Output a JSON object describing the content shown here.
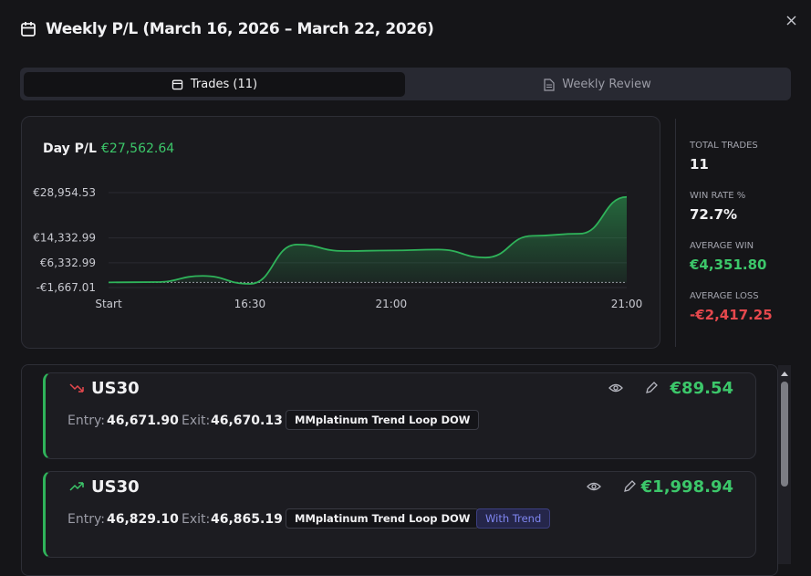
{
  "header": {
    "title": "Weekly P/L (March 16, 2026 – March 22, 2026)"
  },
  "tabs": [
    {
      "label": "Trades (11)"
    },
    {
      "label": "Weekly Review"
    }
  ],
  "summary": {
    "label": "Day P/L",
    "value": "€27,562.64"
  },
  "chart_data": {
    "type": "area",
    "categories": [
      "Start",
      null,
      null,
      "16:30",
      null,
      null,
      "21:00",
      null,
      null,
      null,
      null,
      "21:00"
    ],
    "values": [
      0,
      89.54,
      2088.48,
      -500,
      12200,
      10100,
      10300,
      10600,
      8000,
      15000,
      15700,
      27562.64
    ],
    "color": "#2fb35a",
    "ylim": [
      -1667.01,
      28954.53
    ],
    "yticks": [
      {
        "value": -1667.01,
        "label": "-€1,667.01"
      },
      {
        "value": 6332.99,
        "label": "€6,332.99"
      },
      {
        "value": 14332.99,
        "label": "€14,332.99"
      },
      {
        "value": 28954.53,
        "label": "€28,954.53"
      }
    ],
    "grid": true
  },
  "stats": [
    {
      "label": "TOTAL TRADES",
      "value": "11"
    },
    {
      "label": "WIN RATE %",
      "value": "72.7%"
    },
    {
      "label": "AVERAGE WIN",
      "value": "€4,351.80"
    },
    {
      "label": "AVERAGE LOSS",
      "value": "-€2,417.25"
    }
  ],
  "trades": [
    {
      "symbol": "US30",
      "entry_label": "Entry:",
      "entry": "46,671.90",
      "exit_label": "Exit:",
      "exit": "46,670.13",
      "strategy": "MMplatinum Trend Loop DOW",
      "pnl": "€89.54"
    },
    {
      "symbol": "US30",
      "entry_label": "Entry:",
      "entry": "46,829.10",
      "exit_label": "Exit:",
      "exit": "46,865.19",
      "strategy": "MMplatinum Trend Loop DOW",
      "tag": "With Trend",
      "pnl": "€1,998.94"
    }
  ]
}
